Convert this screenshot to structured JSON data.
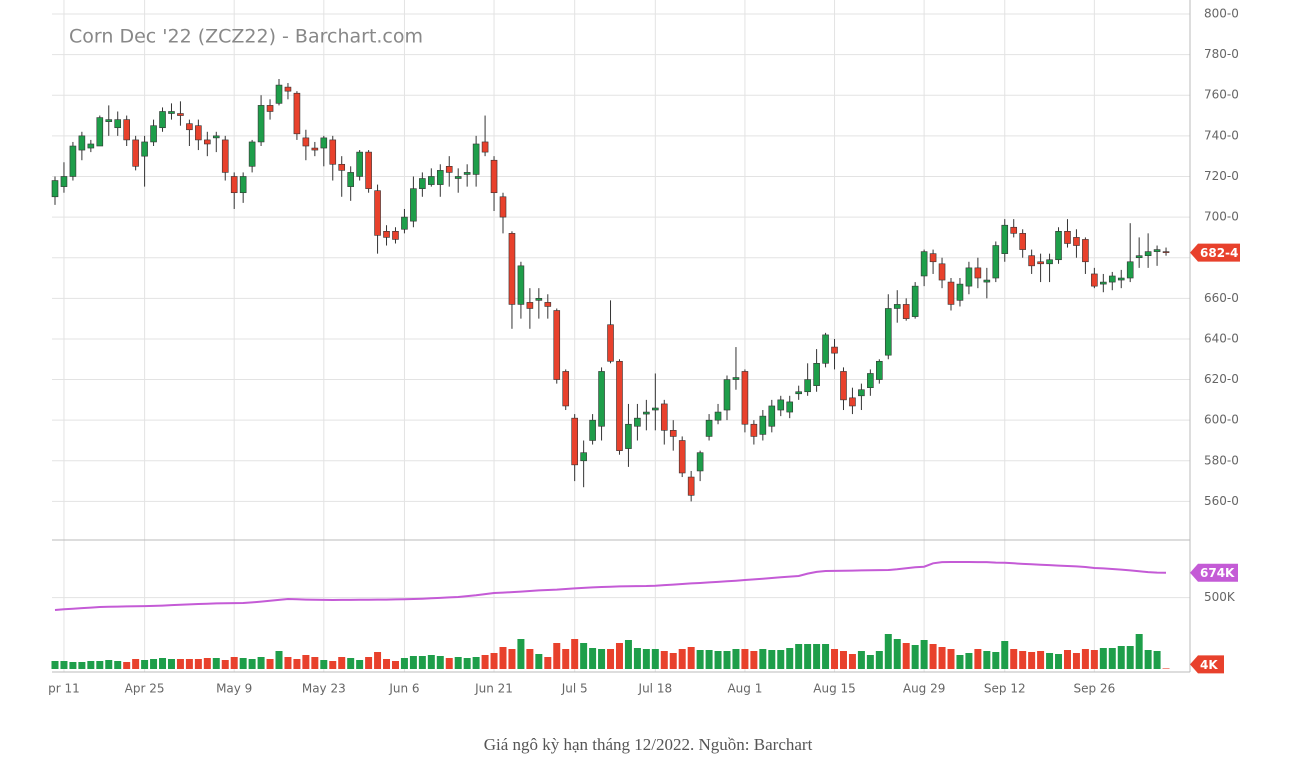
{
  "chart_data": {
    "type": "candlestick",
    "title": "Corn Dec '22 (ZCZ22) - Barchart.com",
    "caption": "Giá ngô kỳ hạn tháng 12/2022. Nguồn: Barchart",
    "up_color": "#1e9e4a",
    "down_color": "#e8412c",
    "oi_color": "#c45bd6",
    "grid": true,
    "ylim": [
      541,
      800
    ],
    "yticks": [
      {
        "value": 800,
        "label": "800-0"
      },
      {
        "value": 780,
        "label": "780-0"
      },
      {
        "value": 760,
        "label": "760-0"
      },
      {
        "value": 740,
        "label": "740-0"
      },
      {
        "value": 720,
        "label": "720-0"
      },
      {
        "value": 700,
        "label": "700-0"
      },
      {
        "value": 680,
        "label": "680-0"
      },
      {
        "value": 660,
        "label": "660-0"
      },
      {
        "value": 640,
        "label": "640-0"
      },
      {
        "value": 620,
        "label": "620-0"
      },
      {
        "value": 600,
        "label": "600-0"
      },
      {
        "value": 580,
        "label": "580-0"
      },
      {
        "value": 560,
        "label": "560-0"
      }
    ],
    "y2lim": [
      0,
      868
    ],
    "y2ticks": [
      {
        "value": 500,
        "label": "500K"
      }
    ],
    "last_price": {
      "value": 682.5,
      "label": "682-4"
    },
    "last_open_interest": {
      "value": 674,
      "label": "674K"
    },
    "last_volume": {
      "value": 4,
      "label": "4K"
    },
    "categories": [
      null,
      "pr 11",
      null,
      null,
      null,
      null,
      null,
      null,
      null,
      null,
      "Apr 25",
      null,
      null,
      null,
      null,
      null,
      null,
      null,
      null,
      null,
      "May 9",
      null,
      null,
      null,
      null,
      null,
      null,
      null,
      null,
      null,
      "May 23",
      null,
      null,
      null,
      null,
      null,
      null,
      null,
      null,
      "Jun 6",
      null,
      null,
      null,
      null,
      null,
      null,
      null,
      null,
      null,
      "Jun 21",
      null,
      null,
      null,
      null,
      null,
      null,
      null,
      null,
      "Jul 5",
      null,
      null,
      null,
      null,
      null,
      null,
      null,
      null,
      "Jul 18",
      null,
      null,
      null,
      null,
      null,
      null,
      null,
      null,
      null,
      "Aug 1",
      null,
      null,
      null,
      null,
      null,
      null,
      null,
      null,
      null,
      "Aug 15",
      null,
      null,
      null,
      null,
      null,
      null,
      null,
      null,
      null,
      "Aug 29",
      null,
      null,
      null,
      null,
      null,
      null,
      null,
      null,
      "Sep 12",
      null,
      null,
      null,
      null,
      null,
      null,
      null,
      null,
      null,
      "Sep 26",
      null,
      null,
      null,
      null,
      null,
      null,
      null,
      null
    ],
    "ohlc": [
      [
        710,
        720,
        706,
        718
      ],
      [
        715,
        727,
        712,
        720
      ],
      [
        720,
        737,
        718,
        735
      ],
      [
        733,
        742,
        728,
        740
      ],
      [
        734,
        738,
        732,
        736
      ],
      [
        735,
        750,
        735,
        749
      ],
      [
        747,
        755,
        740,
        748
      ],
      [
        744,
        752,
        740,
        748
      ],
      [
        748,
        750,
        735,
        738
      ],
      [
        738,
        740,
        723,
        725
      ],
      [
        730,
        740,
        715,
        737
      ],
      [
        737,
        748,
        735,
        745
      ],
      [
        744,
        754,
        742,
        752
      ],
      [
        751,
        756,
        748,
        752
      ],
      [
        751,
        757,
        745,
        750
      ],
      [
        746,
        748,
        735,
        743
      ],
      [
        745,
        748,
        733,
        738
      ],
      [
        738,
        742,
        730,
        736
      ],
      [
        739,
        742,
        732,
        740
      ],
      [
        738,
        740,
        718,
        722
      ],
      [
        720,
        722,
        704,
        712
      ],
      [
        712,
        722,
        707,
        720
      ],
      [
        725,
        738,
        722,
        737
      ],
      [
        737,
        760,
        735,
        755
      ],
      [
        755,
        758,
        748,
        752
      ],
      [
        756,
        768,
        755,
        765
      ],
      [
        764,
        766,
        758,
        762
      ],
      [
        761,
        762,
        738,
        741
      ],
      [
        739,
        743,
        728,
        735
      ],
      [
        734,
        737,
        730,
        733
      ],
      [
        734,
        740,
        725,
        739
      ],
      [
        738,
        740,
        718,
        726
      ],
      [
        726,
        730,
        710,
        723
      ],
      [
        715,
        725,
        708,
        722
      ],
      [
        720,
        733,
        718,
        732
      ],
      [
        732,
        733,
        712,
        714
      ],
      [
        713,
        716,
        682,
        691
      ],
      [
        693,
        696,
        686,
        690
      ],
      [
        693,
        695,
        687,
        689
      ],
      [
        694,
        704,
        692,
        700
      ],
      [
        698,
        720,
        695,
        714
      ],
      [
        714,
        722,
        710,
        719
      ],
      [
        716,
        724,
        715,
        720
      ],
      [
        716,
        726,
        710,
        723
      ],
      [
        725,
        730,
        715,
        722
      ],
      [
        719,
        724,
        712,
        720
      ],
      [
        721,
        726,
        715,
        722
      ],
      [
        721,
        740,
        715,
        736
      ],
      [
        737,
        750,
        730,
        732
      ],
      [
        728,
        730,
        703,
        712
      ],
      [
        710,
        712,
        692,
        700
      ],
      [
        692,
        693,
        645,
        657
      ],
      [
        657,
        678,
        650,
        676
      ],
      [
        658,
        665,
        645,
        655
      ],
      [
        659,
        665,
        650,
        660
      ],
      [
        658,
        662,
        650,
        656
      ],
      [
        654,
        655,
        618,
        620
      ],
      [
        624,
        625,
        605,
        607
      ],
      [
        601,
        603,
        570,
        578
      ],
      [
        580,
        590,
        567,
        584
      ],
      [
        590,
        603,
        588,
        600
      ],
      [
        597,
        626,
        590,
        624
      ],
      [
        647,
        659,
        628,
        629
      ],
      [
        629,
        630,
        583,
        585
      ],
      [
        586,
        608,
        577,
        598
      ],
      [
        597,
        608,
        590,
        601
      ],
      [
        603,
        610,
        595,
        604
      ],
      [
        605,
        623,
        595,
        606
      ],
      [
        608,
        610,
        588,
        595
      ],
      [
        595,
        600,
        585,
        592
      ],
      [
        590,
        592,
        572,
        574
      ],
      [
        572,
        575,
        560,
        563
      ],
      [
        575,
        585,
        570,
        584
      ],
      [
        592,
        603,
        590,
        600
      ],
      [
        600,
        608,
        598,
        604
      ],
      [
        605,
        622,
        600,
        620
      ],
      [
        620,
        636,
        615,
        621
      ],
      [
        624,
        625,
        594,
        598
      ],
      [
        598,
        600,
        588,
        592
      ],
      [
        593,
        605,
        590,
        602
      ],
      [
        597,
        610,
        594,
        607
      ],
      [
        605,
        612,
        602,
        610
      ],
      [
        604,
        612,
        601,
        609
      ],
      [
        613,
        617,
        610,
        614
      ],
      [
        614,
        628,
        612,
        620
      ],
      [
        617,
        635,
        614,
        628
      ],
      [
        628,
        643,
        626,
        642
      ],
      [
        636,
        640,
        625,
        633
      ],
      [
        624,
        626,
        605,
        610
      ],
      [
        611,
        616,
        603,
        607
      ],
      [
        612,
        618,
        605,
        615
      ],
      [
        616,
        625,
        612,
        623
      ],
      [
        620,
        630,
        618,
        629
      ],
      [
        632,
        662,
        630,
        655
      ],
      [
        655,
        664,
        648,
        657
      ],
      [
        657,
        660,
        649,
        650
      ],
      [
        651,
        668,
        650,
        666
      ],
      [
        671,
        684,
        666,
        683
      ],
      [
        682,
        684,
        672,
        678
      ],
      [
        677,
        680,
        665,
        669
      ],
      [
        668,
        670,
        654,
        657
      ],
      [
        659,
        670,
        656,
        667
      ],
      [
        666,
        678,
        662,
        675
      ],
      [
        675,
        680,
        665,
        670
      ],
      [
        668,
        675,
        660,
        669
      ],
      [
        670,
        688,
        668,
        686
      ],
      [
        682,
        699,
        678,
        696
      ],
      [
        695,
        699,
        690,
        692
      ],
      [
        692,
        694,
        680,
        684
      ],
      [
        681,
        684,
        672,
        676
      ],
      [
        678,
        682,
        668,
        677
      ],
      [
        677,
        682,
        668,
        679
      ],
      [
        679,
        695,
        677,
        693
      ],
      [
        693,
        699,
        685,
        687
      ],
      [
        690,
        694,
        680,
        686
      ],
      [
        689,
        690,
        672,
        678
      ],
      [
        672,
        675,
        665,
        666
      ],
      [
        667,
        672,
        663,
        668
      ],
      [
        668,
        673,
        664,
        671
      ],
      [
        669,
        674,
        665,
        670
      ],
      [
        670,
        697,
        668,
        678
      ],
      [
        680,
        690,
        675,
        681
      ],
      [
        681,
        692,
        675,
        683
      ],
      [
        683,
        686,
        676,
        684
      ],
      [
        683,
        685,
        681,
        682.5
      ]
    ],
    "volume": [
      56,
      56,
      49,
      49,
      56,
      56,
      63,
      56,
      49,
      70,
      63,
      70,
      77,
      70,
      70,
      70,
      70,
      77,
      77,
      63,
      84,
      77,
      70,
      84,
      70,
      126,
      84,
      70,
      98,
      84,
      63,
      56,
      84,
      77,
      63,
      84,
      119,
      70,
      56,
      77,
      91,
      91,
      98,
      91,
      77,
      84,
      77,
      84,
      98,
      112,
      154,
      140,
      210,
      140,
      105,
      84,
      182,
      140,
      210,
      182,
      147,
      140,
      140,
      182,
      203,
      147,
      140,
      140,
      126,
      112,
      140,
      154,
      133,
      133,
      126,
      126,
      140,
      140,
      126,
      140,
      133,
      133,
      147,
      175,
      175,
      175,
      175,
      140,
      126,
      105,
      126,
      98,
      126,
      245,
      210,
      182,
      168,
      203,
      175,
      154,
      140,
      98,
      112,
      140,
      126,
      119,
      196,
      140,
      126,
      119,
      126,
      112,
      105,
      133,
      112,
      140,
      133,
      147,
      147,
      161,
      161,
      245,
      133,
      126,
      4
    ],
    "open_interest": [
      413,
      418,
      422,
      426,
      430,
      434,
      436,
      437,
      438,
      439,
      440,
      442,
      444,
      447,
      450,
      452,
      455,
      457,
      459,
      460,
      461,
      462,
      466,
      472,
      478,
      484,
      490,
      488,
      486,
      485,
      484,
      483,
      484,
      484,
      485,
      485,
      486,
      486,
      487,
      488,
      490,
      492,
      495,
      498,
      501,
      504,
      510,
      516,
      524,
      532,
      535,
      538,
      542,
      546,
      550,
      553,
      556,
      560,
      564,
      568,
      571,
      574,
      576,
      578,
      579,
      580,
      581,
      583,
      587,
      591,
      595,
      599,
      602,
      606,
      610,
      614,
      618,
      623,
      627,
      632,
      637,
      642,
      647,
      651,
      668,
      680,
      686,
      687,
      688,
      689,
      690,
      691,
      692,
      693,
      698,
      705,
      712,
      716,
      740,
      748,
      749,
      749,
      749,
      748,
      748,
      745,
      744,
      740,
      736,
      733,
      730,
      727,
      724,
      721,
      718,
      714,
      707,
      704,
      700,
      696,
      690,
      684,
      678,
      675,
      674
    ]
  }
}
